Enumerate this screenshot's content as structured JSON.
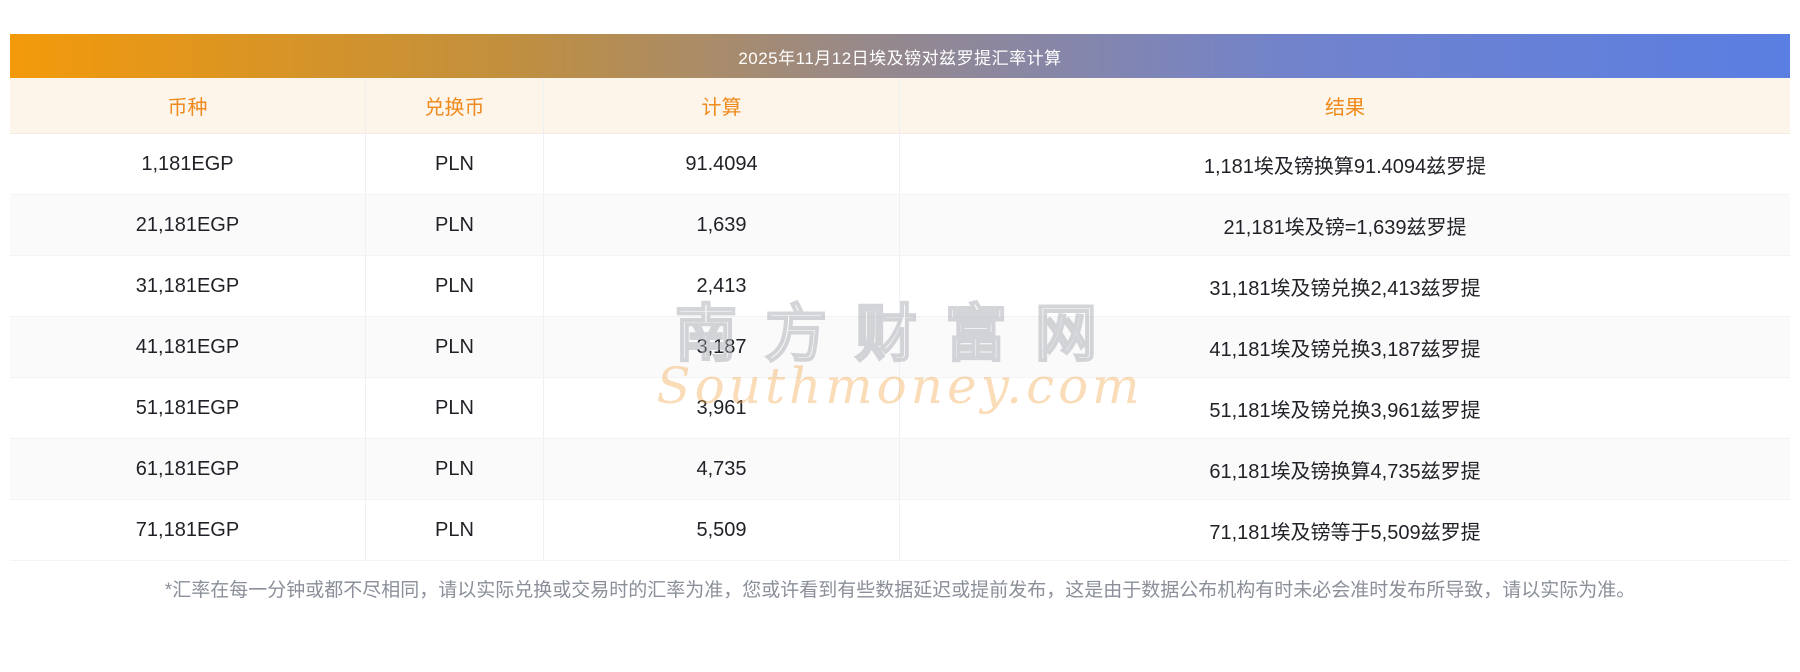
{
  "title": "2025年11月12日埃及镑对兹罗提汇率计算",
  "table": {
    "headers": {
      "currency": "币种",
      "target": "兑换币",
      "calc": "计算",
      "result": "结果"
    },
    "rows": [
      {
        "currency": "1,181EGP",
        "target": "PLN",
        "calc": "91.4094",
        "result": "1,181埃及镑换算91.4094兹罗提"
      },
      {
        "currency": "21,181EGP",
        "target": "PLN",
        "calc": "1,639",
        "result": "21,181埃及镑=1,639兹罗提"
      },
      {
        "currency": "31,181EGP",
        "target": "PLN",
        "calc": "2,413",
        "result": "31,181埃及镑兑换2,413兹罗提"
      },
      {
        "currency": "41,181EGP",
        "target": "PLN",
        "calc": "3,187",
        "result": "41,181埃及镑兑换3,187兹罗提"
      },
      {
        "currency": "51,181EGP",
        "target": "PLN",
        "calc": "3,961",
        "result": "51,181埃及镑兑换3,961兹罗提"
      },
      {
        "currency": "61,181EGP",
        "target": "PLN",
        "calc": "4,735",
        "result": "61,181埃及镑换算4,735兹罗提"
      },
      {
        "currency": "71,181EGP",
        "target": "PLN",
        "calc": "5,509",
        "result": "71,181埃及镑等于5,509兹罗提"
      }
    ]
  },
  "watermark": {
    "cn": "南方财富网",
    "en": "Southmoney.com"
  },
  "footnote": "*汇率在每一分钟或都不尽相同，请以实际兑换或交易时的汇率为准，您或许看到有些数据延迟或提前发布，这是由于数据公布机构有时未必会准时发布所导致，请以实际为准。",
  "colors": {
    "accent_orange": "#f08a1c",
    "header_bg": "#fdf4ea",
    "titlebar_gradient_left": "#f39a0a",
    "titlebar_gradient_right": "#5a7ee2",
    "text_dark": "#1f2126",
    "footnote_gray": "#8a8f99"
  }
}
